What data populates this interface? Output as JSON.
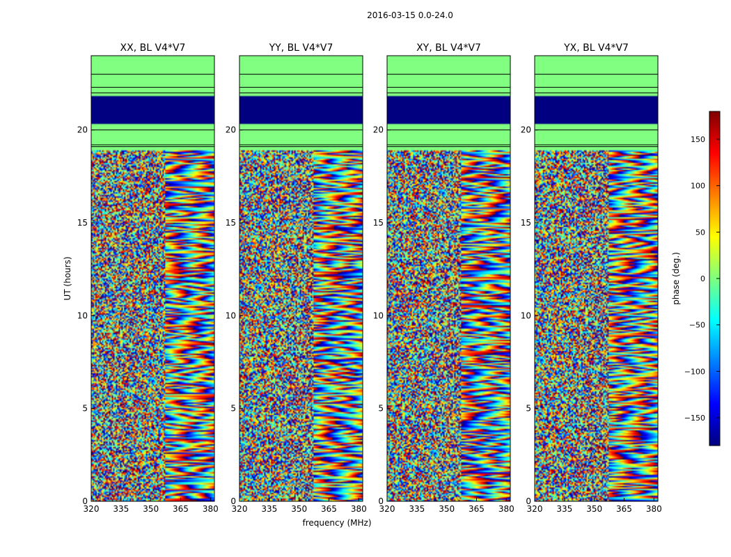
{
  "figure": {
    "suptitle": "2016-03-15 0.0-24.0",
    "xlabel": "frequency (MHz)",
    "ylabel": "UT (hours)"
  },
  "chart_data": [
    {
      "type": "heatmap",
      "title": "XX, BL V4*V7",
      "xlim": [
        320,
        382
      ],
      "ylim": [
        0,
        24
      ],
      "xticks": [
        320,
        335,
        350,
        365,
        380
      ],
      "yticks": [
        0,
        5,
        10,
        15,
        20
      ],
      "flagged_hours": [
        [
          18.9,
          24.0
        ]
      ],
      "no_signal_hours": [
        [
          20.3,
          21.8
        ]
      ]
    },
    {
      "type": "heatmap",
      "title": "YY, BL V4*V7",
      "xlim": [
        320,
        382
      ],
      "ylim": [
        0,
        24
      ],
      "xticks": [
        320,
        335,
        350,
        365,
        380
      ],
      "yticks": [
        0,
        5,
        10,
        15,
        20
      ],
      "flagged_hours": [
        [
          18.9,
          24.0
        ]
      ],
      "no_signal_hours": [
        [
          20.3,
          21.8
        ]
      ]
    },
    {
      "type": "heatmap",
      "title": "XY, BL V4*V7",
      "xlim": [
        320,
        382
      ],
      "ylim": [
        0,
        24
      ],
      "xticks": [
        320,
        335,
        350,
        365,
        380
      ],
      "yticks": [
        0,
        5,
        10,
        15,
        20
      ],
      "flagged_hours": [
        [
          18.9,
          24.0
        ]
      ],
      "no_signal_hours": [
        [
          20.3,
          21.8
        ]
      ]
    },
    {
      "type": "heatmap",
      "title": "YX, BL V4*V7",
      "xlim": [
        320,
        382
      ],
      "ylim": [
        0,
        24
      ],
      "xticks": [
        320,
        335,
        350,
        365,
        380
      ],
      "yticks": [
        0,
        5,
        10,
        15,
        20
      ],
      "flagged_hours": [
        [
          18.9,
          24.0
        ]
      ],
      "no_signal_hours": [
        [
          20.3,
          21.8
        ]
      ]
    }
  ],
  "colorbar": {
    "label": "phase (deg.)",
    "range": [
      -180,
      180
    ],
    "ticks": [
      150,
      100,
      50,
      0,
      -50,
      -100,
      -150
    ],
    "tick_labels": [
      "150",
      "100",
      "50",
      "0",
      "−50",
      "−100",
      "−150"
    ],
    "colormap": "jet"
  }
}
